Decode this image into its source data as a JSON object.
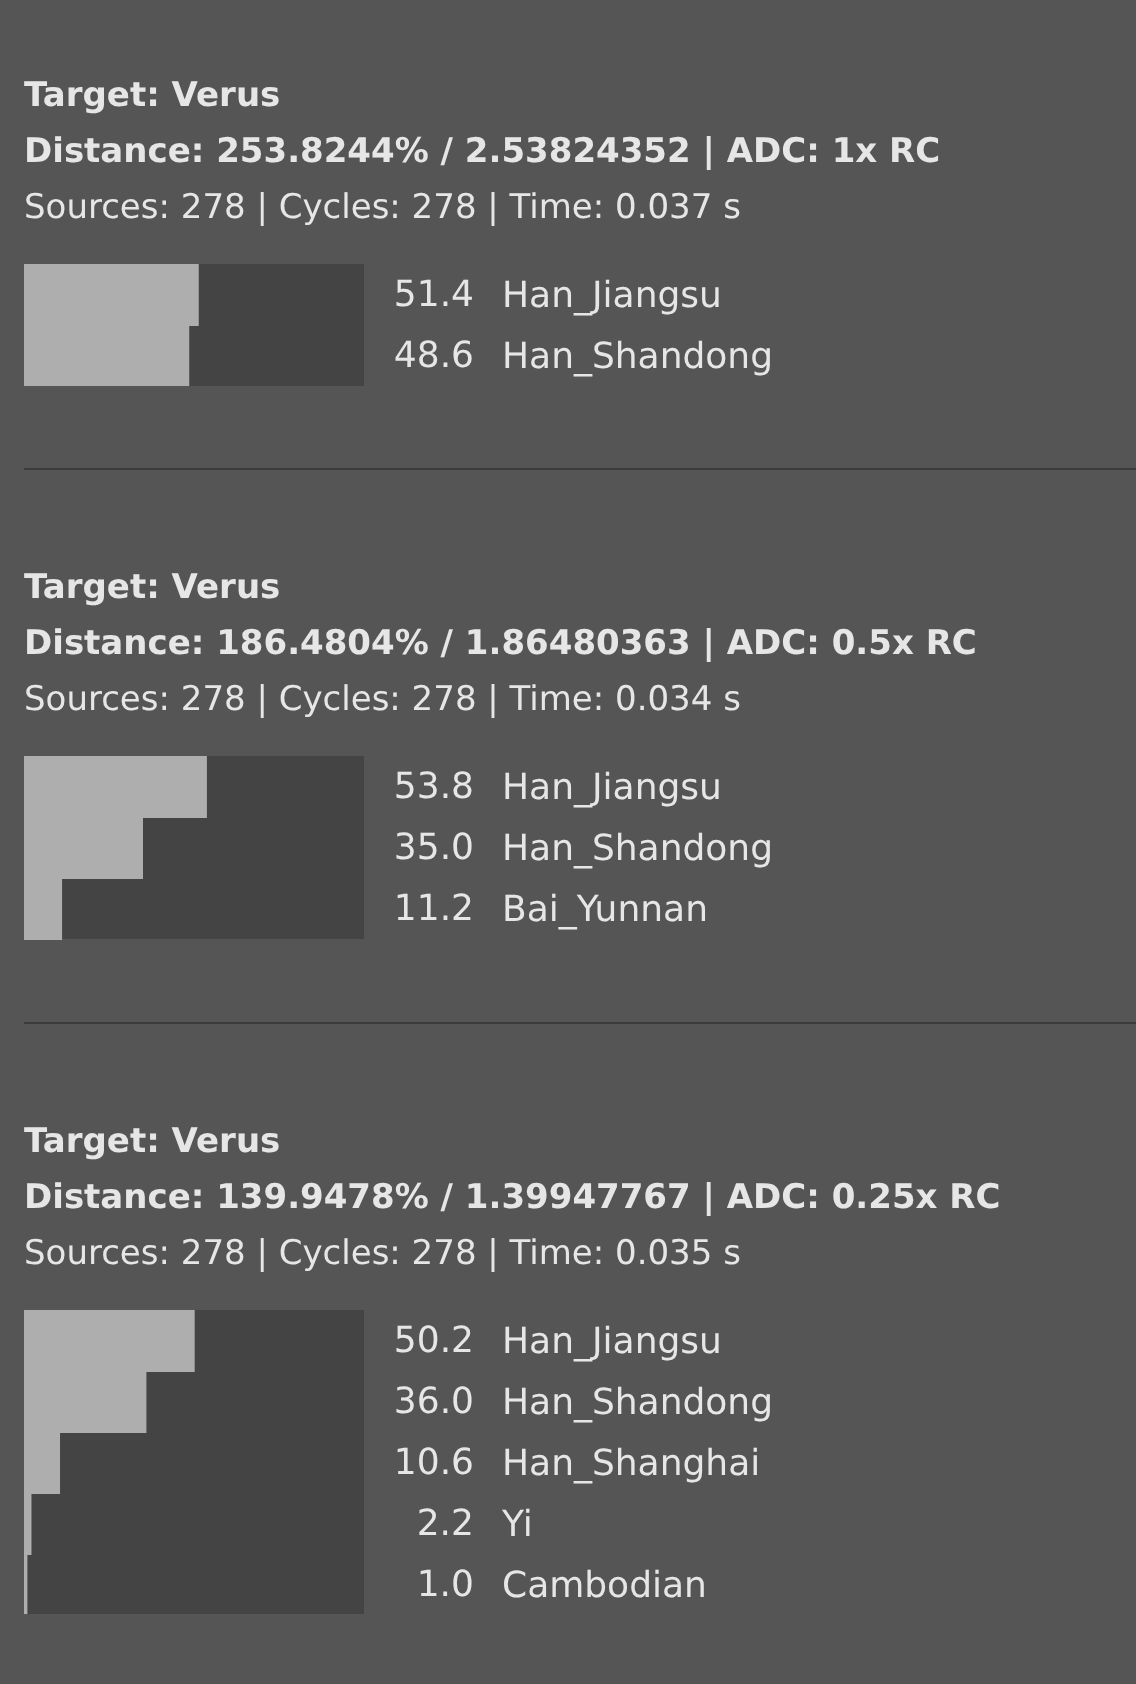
{
  "chart_data": [
    {
      "type": "bar",
      "orientation": "horizontal",
      "title": "Target: Verus",
      "subtitle": "Distance: 253.8244% / 2.53824352 | ADC: 1x RC",
      "annotations": [
        "Sources: 278 | Cycles: 278 | Time: 0.037 s"
      ],
      "categories": [
        "Han_Jiangsu",
        "Han_Shandong"
      ],
      "values": [
        51.4,
        48.6
      ],
      "value_labels": [
        "51.4",
        "48.6"
      ],
      "color": "#aeaeae",
      "xlim": [
        0,
        100
      ],
      "tick_labels": "y"
    },
    {
      "type": "bar",
      "orientation": "horizontal",
      "title": "Target: Verus",
      "subtitle": "Distance: 186.4804% / 1.86480363 | ADC: 0.5x RC",
      "annotations": [
        "Sources: 278 | Cycles: 278 | Time: 0.034 s"
      ],
      "categories": [
        "Han_Jiangsu",
        "Han_Shandong",
        "Bai_Yunnan"
      ],
      "values": [
        53.8,
        35.0,
        11.2
      ],
      "value_labels": [
        "53.8",
        "35.0",
        "11.2"
      ],
      "color": "#aeaeae",
      "xlim": [
        0,
        100
      ],
      "tick_labels": "y"
    },
    {
      "type": "bar",
      "orientation": "horizontal",
      "title": "Target: Verus",
      "subtitle": "Distance: 139.9478% / 1.39947767 | ADC: 0.25x RC",
      "annotations": [
        "Sources: 278 | Cycles: 278 | Time: 0.035 s"
      ],
      "categories": [
        "Han_Jiangsu",
        "Han_Shandong",
        "Han_Shanghai",
        "Yi",
        "Cambodian"
      ],
      "values": [
        50.2,
        36.0,
        10.6,
        2.2,
        1.0
      ],
      "value_labels": [
        "50.2",
        "36.0",
        "10.6",
        "2.2",
        "1.0"
      ],
      "color": "#aeaeae",
      "xlim": [
        0,
        100
      ],
      "tick_labels": "y"
    }
  ]
}
